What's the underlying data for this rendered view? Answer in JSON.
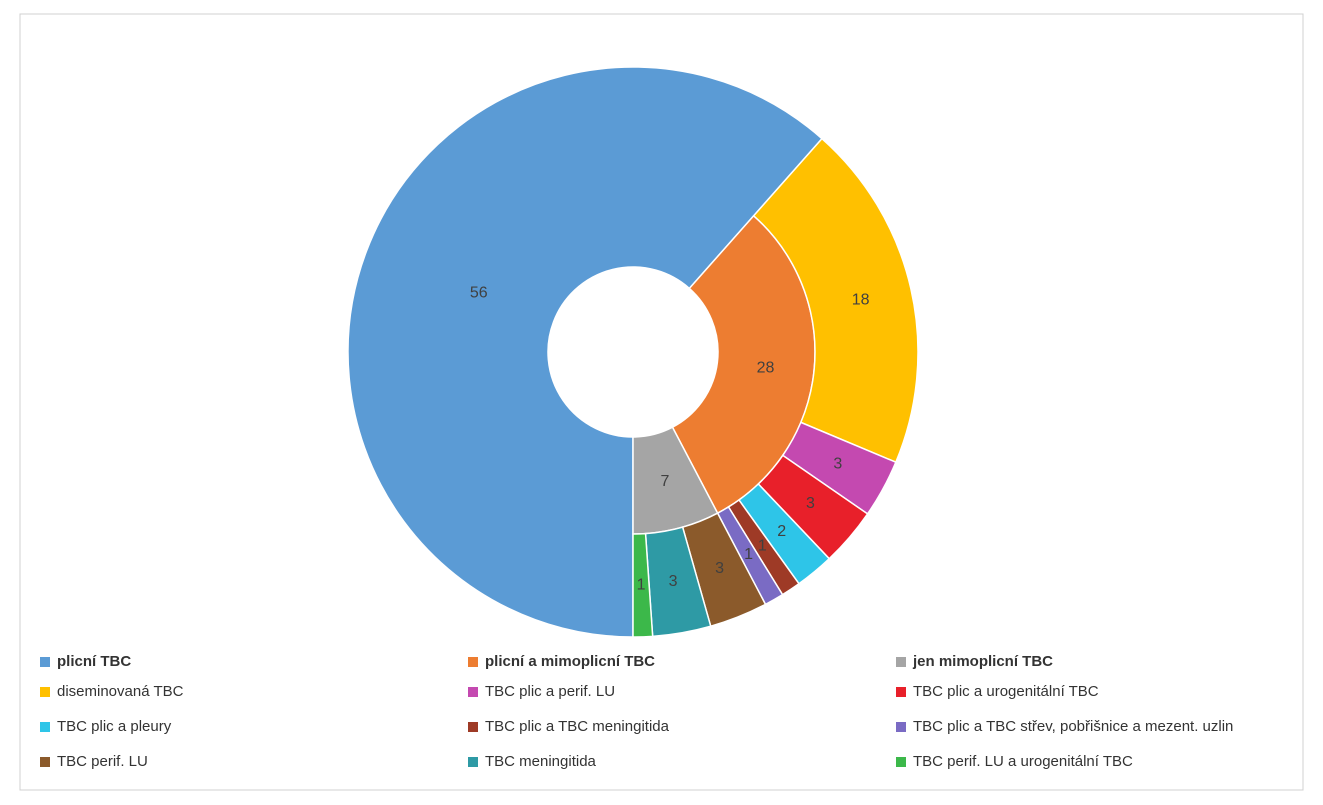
{
  "chart_data": {
    "type": "sunburst",
    "series": [
      {
        "name": "plicní TBC",
        "color": "#5b9bd5",
        "value": 56,
        "children": []
      },
      {
        "name": "plicní a mimoplicní TBC",
        "color": "#ed7d31",
        "value": 28,
        "children": [
          {
            "name": "diseminovaná TBC",
            "color": "#ffc000",
            "value": 18
          },
          {
            "name": "TBC plic a perif. LU",
            "color": "#c449b0",
            "value": 3
          },
          {
            "name": "TBC plic a urogenitální TBC",
            "color": "#e8202a",
            "value": 3
          },
          {
            "name": "TBC plic a pleury",
            "color": "#2ec5e8",
            "value": 2
          },
          {
            "name": "TBC plic a TBC meningitida",
            "color": "#9e3a26",
            "value": 1
          },
          {
            "name": "TBC plic a TBC střev, pobřišnice a mezent. uzlin",
            "color": "#7a6bc4",
            "value": 1
          }
        ]
      },
      {
        "name": "jen mimoplicní TBC",
        "color": "#a5a5a5",
        "value": 7,
        "children": [
          {
            "name": "TBC perif. LU",
            "color": "#8b5a2b",
            "value": 3
          },
          {
            "name": "TBC meningitida",
            "color": "#2e9aa5",
            "value": 3
          },
          {
            "name": "TBC perif. LU a urogenitální TBC",
            "color": "#3cb84a",
            "value": 1
          }
        ]
      }
    ]
  }
}
